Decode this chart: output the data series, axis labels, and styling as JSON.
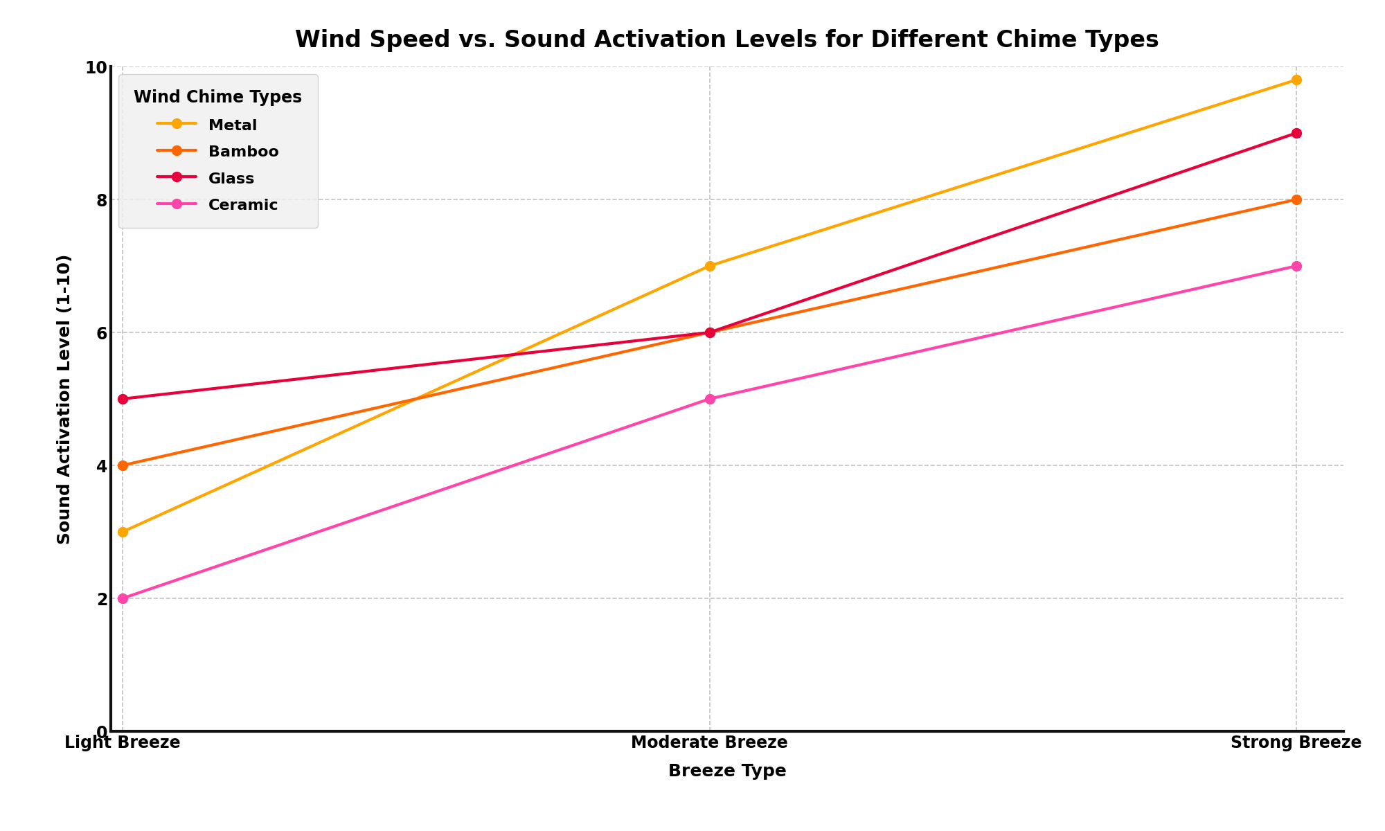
{
  "title": "Wind Speed vs. Sound Activation Levels for Different Chime Types",
  "xlabel": "Breeze Type",
  "ylabel": "Sound Activation Level (1-10)",
  "legend_title": "Wind Chime Types",
  "categories": [
    "Light Breeze",
    "Moderate Breeze",
    "Strong Breeze"
  ],
  "series": [
    {
      "name": "Metal",
      "values": [
        3,
        7,
        9.8
      ],
      "color": "#FFA500",
      "linewidth": 3.0,
      "markersize": 10
    },
    {
      "name": "Bamboo",
      "values": [
        4,
        6,
        8
      ],
      "color": "#FF6600",
      "linewidth": 3.0,
      "markersize": 10
    },
    {
      "name": "Glass",
      "values": [
        5,
        6,
        9
      ],
      "color": "#E8003A",
      "linewidth": 3.0,
      "markersize": 10
    },
    {
      "name": "Ceramic",
      "values": [
        2,
        5,
        7
      ],
      "color": "#FF44AA",
      "linewidth": 3.0,
      "markersize": 10
    }
  ],
  "ylim": [
    0,
    10
  ],
  "yticks": [
    0,
    2,
    4,
    6,
    8,
    10
  ],
  "background_color": "#ffffff",
  "grid_color": "#999999",
  "grid_linestyle": "--",
  "grid_alpha": 0.6,
  "title_fontsize": 24,
  "label_fontsize": 18,
  "tick_fontsize": 17,
  "legend_fontsize": 16,
  "legend_title_fontsize": 17
}
